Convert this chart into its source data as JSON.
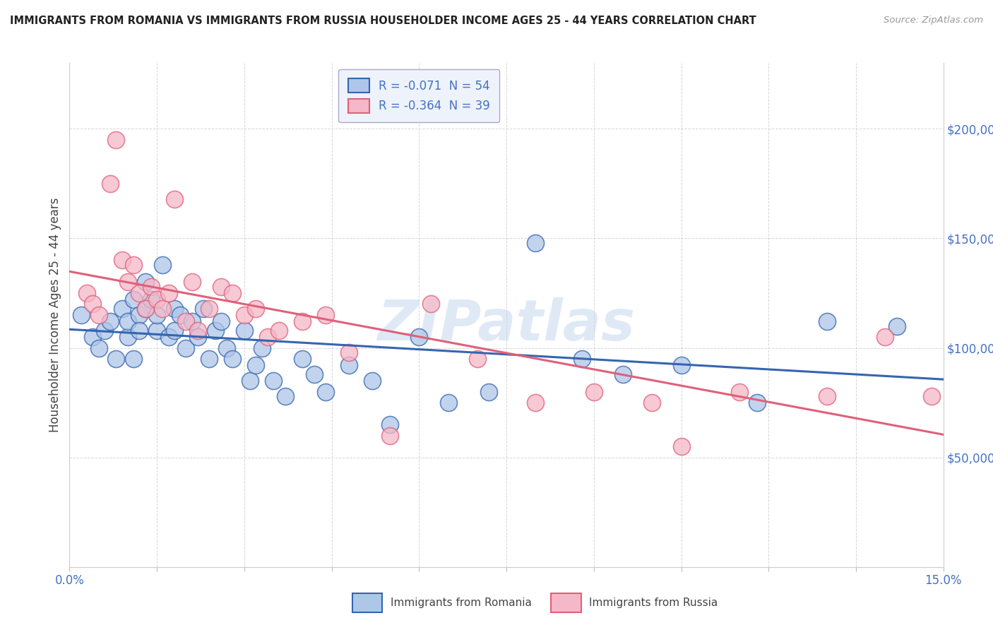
{
  "title": "IMMIGRANTS FROM ROMANIA VS IMMIGRANTS FROM RUSSIA HOUSEHOLDER INCOME AGES 25 - 44 YEARS CORRELATION CHART",
  "source": "Source: ZipAtlas.com",
  "ylabel": "Householder Income Ages 25 - 44 years",
  "xlim": [
    0.0,
    0.15
  ],
  "ylim": [
    0,
    230000
  ],
  "xticks": [
    0.0,
    0.015,
    0.03,
    0.045,
    0.06,
    0.075,
    0.09,
    0.105,
    0.12,
    0.135,
    0.15
  ],
  "yticks": [
    0,
    50000,
    100000,
    150000,
    200000
  ],
  "yticklabels": [
    "",
    "$50,000",
    "$100,000",
    "$150,000",
    "$200,000"
  ],
  "romania_R": -0.071,
  "romania_N": 54,
  "russia_R": -0.364,
  "russia_N": 39,
  "romania_color": "#aec6e8",
  "russia_color": "#f5b8c8",
  "romania_line_color": "#3565b0",
  "russia_line_color": "#e0607a",
  "romania_scatter_x": [
    0.002,
    0.004,
    0.005,
    0.006,
    0.007,
    0.008,
    0.009,
    0.01,
    0.01,
    0.011,
    0.011,
    0.012,
    0.012,
    0.013,
    0.013,
    0.014,
    0.015,
    0.015,
    0.016,
    0.017,
    0.018,
    0.018,
    0.019,
    0.02,
    0.021,
    0.022,
    0.023,
    0.024,
    0.025,
    0.026,
    0.027,
    0.028,
    0.03,
    0.031,
    0.032,
    0.033,
    0.035,
    0.037,
    0.04,
    0.042,
    0.044,
    0.048,
    0.052,
    0.055,
    0.06,
    0.065,
    0.072,
    0.08,
    0.088,
    0.095,
    0.105,
    0.118,
    0.13,
    0.142
  ],
  "romania_scatter_y": [
    115000,
    105000,
    100000,
    108000,
    112000,
    95000,
    118000,
    105000,
    112000,
    122000,
    95000,
    115000,
    108000,
    130000,
    118000,
    122000,
    108000,
    115000,
    138000,
    105000,
    118000,
    108000,
    115000,
    100000,
    112000,
    105000,
    118000,
    95000,
    108000,
    112000,
    100000,
    95000,
    108000,
    85000,
    92000,
    100000,
    85000,
    78000,
    95000,
    88000,
    80000,
    92000,
    85000,
    65000,
    105000,
    75000,
    80000,
    148000,
    95000,
    88000,
    92000,
    75000,
    112000,
    110000
  ],
  "russia_scatter_x": [
    0.003,
    0.004,
    0.005,
    0.007,
    0.008,
    0.009,
    0.01,
    0.011,
    0.012,
    0.013,
    0.014,
    0.015,
    0.016,
    0.017,
    0.018,
    0.02,
    0.021,
    0.022,
    0.024,
    0.026,
    0.028,
    0.03,
    0.032,
    0.034,
    0.036,
    0.04,
    0.044,
    0.048,
    0.055,
    0.062,
    0.07,
    0.08,
    0.09,
    0.1,
    0.105,
    0.115,
    0.13,
    0.14,
    0.148
  ],
  "russia_scatter_y": [
    125000,
    120000,
    115000,
    175000,
    195000,
    140000,
    130000,
    138000,
    125000,
    118000,
    128000,
    122000,
    118000,
    125000,
    168000,
    112000,
    130000,
    108000,
    118000,
    128000,
    125000,
    115000,
    118000,
    105000,
    108000,
    112000,
    115000,
    98000,
    60000,
    120000,
    95000,
    75000,
    80000,
    75000,
    55000,
    80000,
    78000,
    105000,
    78000
  ],
  "watermark": "ZIPatlas",
  "background_color": "#ffffff",
  "grid_color": "#cccccc",
  "tick_color": "#4472c4",
  "legend_box_color": "#eef2fa"
}
